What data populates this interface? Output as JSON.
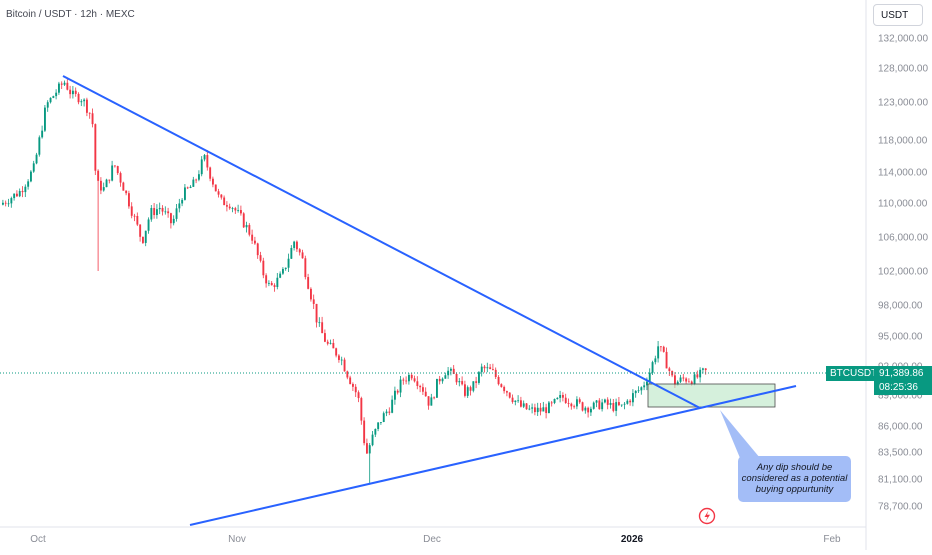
{
  "header": {
    "symbol_title": "Bitcoin / USDT · 12h · MEXC",
    "currency_button": "USDT"
  },
  "price_badge": {
    "ticker": "BTCUSDT",
    "price": "91,389.86",
    "countdown": "08:25:36"
  },
  "annotation": {
    "note": "Any dip should be considered as a potential buying oppurtunity"
  },
  "chart_data": {
    "type": "candlestick",
    "title": "Bitcoin / USDT · 12h · MEXC",
    "y_axis_labels": [
      "132,000.00",
      "128,000.00",
      "123,000.00",
      "118,000.00",
      "114,000.00",
      "110,000.00",
      "106,000.00",
      "102,000.00",
      "98,000.00",
      "95,000.00",
      "92,000.00",
      "89,000.00",
      "86,000.00",
      "83,500.00",
      "81,100.00",
      "78,700.00"
    ],
    "x_axis_labels": [
      "Oct",
      "Nov",
      "Dec",
      "2026",
      "Feb"
    ],
    "y_scale": "log",
    "colors": {
      "up": "#089981",
      "down": "#f23645",
      "trendline": "#2962ff",
      "zone": "#b9e6c4",
      "price_line": "#089981"
    },
    "current_price": 91389.86,
    "key_points": [
      {
        "date": "2025-10-06",
        "label": "high",
        "y": 126200
      },
      {
        "date": "2025-10-10",
        "label": "wick low",
        "y": 102000
      },
      {
        "date": "2025-10-27",
        "label": "lower high",
        "y": 116300
      },
      {
        "date": "2025-11-21",
        "label": "low",
        "y": 80600
      },
      {
        "date": "2026-01-05",
        "label": "recent high",
        "y": 94800
      }
    ],
    "trendlines": [
      {
        "name": "descending",
        "start": {
          "date": "2025-10-03",
          "y": 126800
        },
        "end": {
          "date": "2026-01-12",
          "y": 87800
        }
      },
      {
        "name": "ascending",
        "start": {
          "date": "2025-10-24",
          "y": 77600
        },
        "end": {
          "date": "2026-01-26",
          "y": 89900
        }
      }
    ],
    "zone": {
      "from": "2026-01-02",
      "to": "2026-01-24",
      "y_low": 87900,
      "y_high": 89800
    },
    "grid": false
  }
}
